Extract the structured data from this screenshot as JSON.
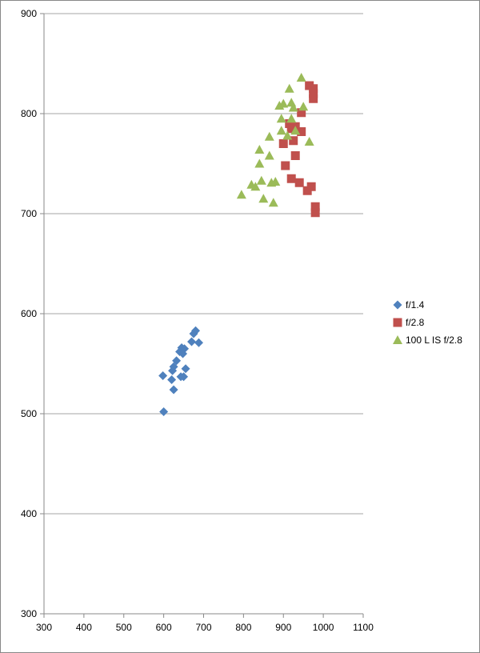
{
  "chart_data": {
    "type": "scatter",
    "title": "",
    "xlabel": "",
    "ylabel": "",
    "xlim": [
      300,
      1100
    ],
    "ylim": [
      300,
      900
    ],
    "xticks": [
      300,
      400,
      500,
      600,
      700,
      800,
      900,
      1000,
      1100
    ],
    "yticks": [
      300,
      400,
      500,
      600,
      700,
      800,
      900
    ],
    "grid": "horizontal",
    "legend_position": "right",
    "series": [
      {
        "name": "f/1.4",
        "marker": "diamond",
        "color": "#4f81bd",
        "points": [
          [
            600,
            502
          ],
          [
            598,
            538
          ],
          [
            625,
            524
          ],
          [
            620,
            534
          ],
          [
            622,
            543
          ],
          [
            625,
            547
          ],
          [
            632,
            553
          ],
          [
            643,
            537
          ],
          [
            650,
            537
          ],
          [
            640,
            562
          ],
          [
            645,
            566
          ],
          [
            652,
            565
          ],
          [
            648,
            560
          ],
          [
            655,
            545
          ],
          [
            670,
            572
          ],
          [
            675,
            580
          ],
          [
            680,
            583
          ],
          [
            688,
            571
          ]
        ]
      },
      {
        "name": "f/2.8",
        "marker": "square",
        "color": "#c0504d",
        "points": [
          [
            965,
            828
          ],
          [
            975,
            825
          ],
          [
            975,
            820
          ],
          [
            975,
            815
          ],
          [
            945,
            801
          ],
          [
            915,
            790
          ],
          [
            920,
            785
          ],
          [
            930,
            787
          ],
          [
            945,
            782
          ],
          [
            925,
            773
          ],
          [
            900,
            770
          ],
          [
            930,
            758
          ],
          [
            905,
            748
          ],
          [
            920,
            735
          ],
          [
            940,
            731
          ],
          [
            960,
            723
          ],
          [
            970,
            727
          ],
          [
            980,
            707
          ],
          [
            980,
            701
          ]
        ]
      },
      {
        "name": "100 L IS f/2.8",
        "marker": "triangle",
        "color": "#9bbb59",
        "points": [
          [
            945,
            836
          ],
          [
            915,
            825
          ],
          [
            890,
            808
          ],
          [
            900,
            810
          ],
          [
            920,
            811
          ],
          [
            950,
            807
          ],
          [
            895,
            795
          ],
          [
            920,
            795
          ],
          [
            925,
            806
          ],
          [
            910,
            778
          ],
          [
            895,
            783
          ],
          [
            930,
            783
          ],
          [
            865,
            777
          ],
          [
            965,
            772
          ],
          [
            840,
            764
          ],
          [
            865,
            758
          ],
          [
            840,
            750
          ],
          [
            870,
            731
          ],
          [
            880,
            732
          ],
          [
            845,
            733
          ],
          [
            830,
            727
          ],
          [
            820,
            729
          ],
          [
            850,
            715
          ],
          [
            875,
            711
          ],
          [
            795,
            719
          ]
        ]
      }
    ]
  }
}
